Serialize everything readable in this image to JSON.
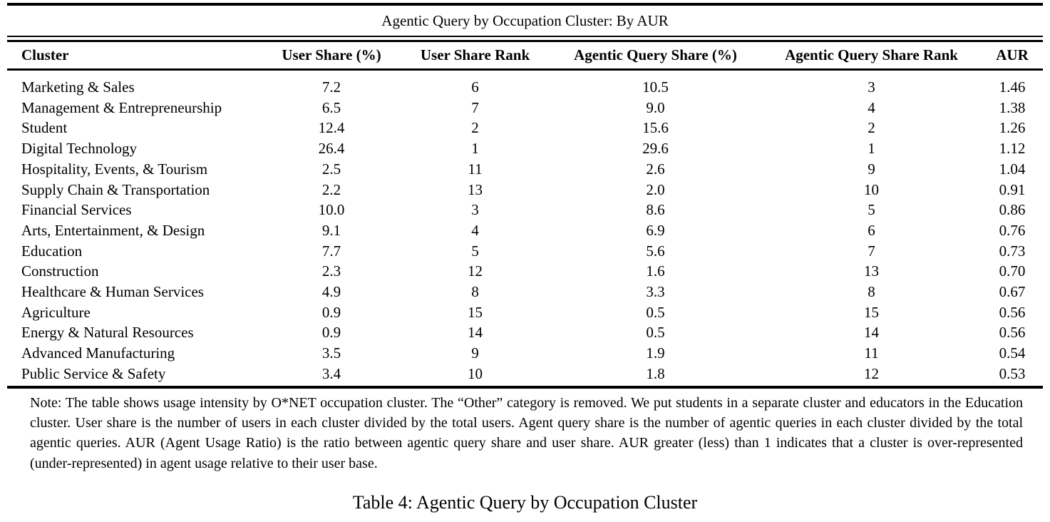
{
  "page": {
    "title": "Agentic Query by Occupation Cluster: By AUR",
    "note": "Note: The table shows usage intensity by O*NET occupation cluster. The “Other” category is removed. We put students in a separate cluster and educators in the Education cluster. User share is the number of users in each cluster divided by the total users. Agent query share is the number of agentic queries in each cluster divided by the total agentic queries. AUR (Agent Usage Ratio) is the ratio between agentic query share and user share. AUR greater (less) than 1 indicates that a cluster is over-represented (under-represented) in agent usage relative to their user base.",
    "caption": "Table 4: Agentic Query by Occupation Cluster"
  },
  "table": {
    "columns": [
      "Cluster",
      "User Share (%)",
      "User Share Rank",
      "Agentic Query Share (%)",
      "Agentic Query Share Rank",
      "AUR"
    ],
    "rows": [
      [
        "Marketing & Sales",
        "7.2",
        "6",
        "10.5",
        "3",
        "1.46"
      ],
      [
        "Management & Entrepreneurship",
        "6.5",
        "7",
        "9.0",
        "4",
        "1.38"
      ],
      [
        "Student",
        "12.4",
        "2",
        "15.6",
        "2",
        "1.26"
      ],
      [
        "Digital Technology",
        "26.4",
        "1",
        "29.6",
        "1",
        "1.12"
      ],
      [
        "Hospitality, Events, & Tourism",
        "2.5",
        "11",
        "2.6",
        "9",
        "1.04"
      ],
      [
        "Supply Chain & Transportation",
        "2.2",
        "13",
        "2.0",
        "10",
        "0.91"
      ],
      [
        "Financial Services",
        "10.0",
        "3",
        "8.6",
        "5",
        "0.86"
      ],
      [
        "Arts, Entertainment, & Design",
        "9.1",
        "4",
        "6.9",
        "6",
        "0.76"
      ],
      [
        "Education",
        "7.7",
        "5",
        "5.6",
        "7",
        "0.73"
      ],
      [
        "Construction",
        "2.3",
        "12",
        "1.6",
        "13",
        "0.70"
      ],
      [
        "Healthcare & Human Services",
        "4.9",
        "8",
        "3.3",
        "8",
        "0.67"
      ],
      [
        "Agriculture",
        "0.9",
        "15",
        "0.5",
        "15",
        "0.56"
      ],
      [
        "Energy & Natural Resources",
        "0.9",
        "14",
        "0.5",
        "14",
        "0.56"
      ],
      [
        "Advanced Manufacturing",
        "3.5",
        "9",
        "1.9",
        "11",
        "0.54"
      ],
      [
        "Public Service & Safety",
        "3.4",
        "10",
        "1.8",
        "12",
        "0.53"
      ]
    ]
  }
}
